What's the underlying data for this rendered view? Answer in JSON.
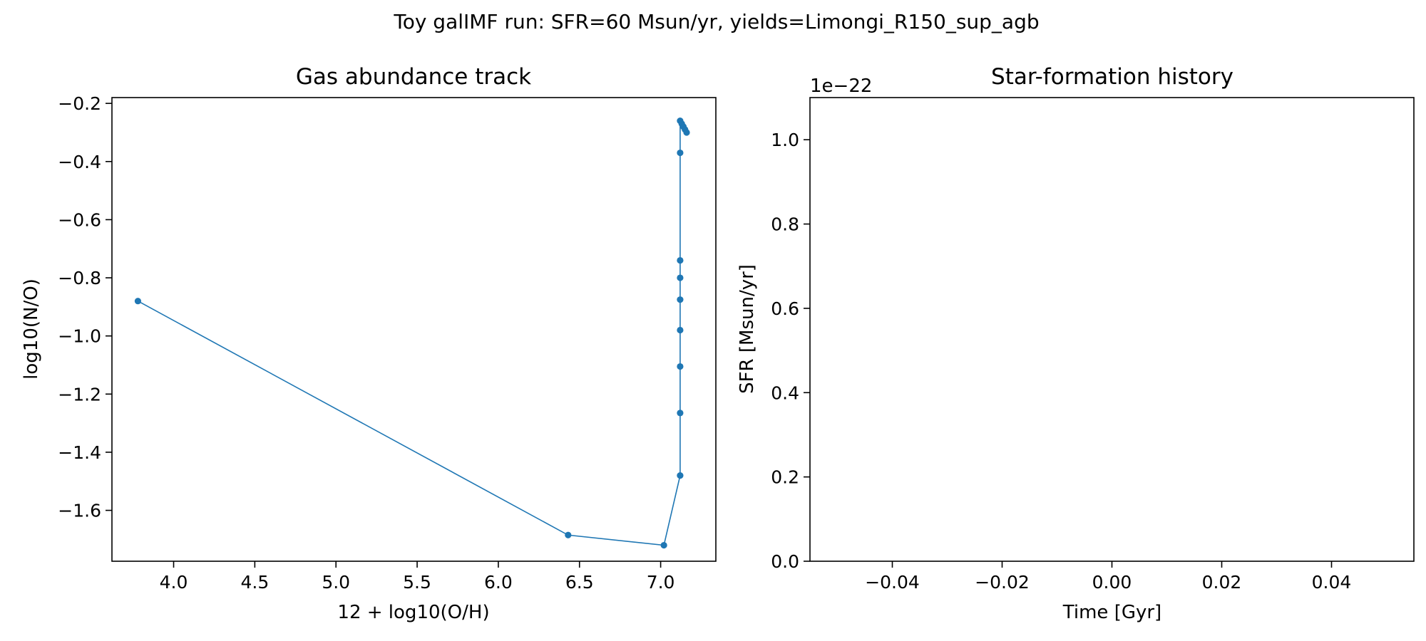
{
  "figure": {
    "suptitle": "Toy galIMF run: SFR=60 Msun/yr, yields=Limongi_R150_sup_agb"
  },
  "chart_data": [
    {
      "type": "line",
      "title": "Gas abundance track",
      "xlabel": "12 + log10(O/H)",
      "ylabel": "log10(N/O)",
      "xlim": [
        3.62,
        7.34
      ],
      "ylim": [
        -1.775,
        -0.18
      ],
      "xticks": [
        4.0,
        4.5,
        5.0,
        5.5,
        6.0,
        6.5,
        7.0
      ],
      "xtick_labels": [
        "4.0",
        "4.5",
        "5.0",
        "5.5",
        "6.0",
        "6.5",
        "7.0"
      ],
      "yticks": [
        -0.2,
        -0.4,
        -0.6,
        -0.8,
        -1.0,
        -1.2,
        -1.4,
        -1.6
      ],
      "ytick_labels": [
        "−0.2",
        "−0.4",
        "−0.6",
        "−0.8",
        "−1.0",
        "−1.2",
        "−1.4",
        "−1.6"
      ],
      "grid": false,
      "color": "#1f77b4",
      "marker": "dot",
      "series": [
        {
          "x": [
            3.78,
            6.43,
            7.02,
            7.12,
            7.12,
            7.12,
            7.12,
            7.12,
            7.12,
            7.12,
            7.12,
            7.12,
            7.13,
            7.14,
            7.15,
            7.16
          ],
          "y": [
            -0.88,
            -1.685,
            -1.72,
            -1.48,
            -1.265,
            -1.105,
            -0.98,
            -0.875,
            -0.8,
            -0.74,
            -0.37,
            -0.26,
            -0.27,
            -0.28,
            -0.29,
            -0.3
          ]
        }
      ]
    },
    {
      "type": "line",
      "title": "Star-formation history",
      "xlabel": "Time [Gyr]",
      "ylabel": "SFR [Msun/yr]",
      "xlim": [
        -0.055,
        0.055
      ],
      "ylim": [
        0,
        1.1
      ],
      "xticks": [
        -0.04,
        -0.02,
        0.0,
        0.02,
        0.04
      ],
      "xtick_labels": [
        "−0.04",
        "−0.02",
        "0.00",
        "0.02",
        "0.04"
      ],
      "yticks": [
        0.0,
        0.2,
        0.4,
        0.6,
        0.8,
        1.0
      ],
      "ytick_labels": [
        "0.0",
        "0.2",
        "0.4",
        "0.6",
        "0.8",
        "1.0"
      ],
      "y_offset_label": "1e−22",
      "grid": false,
      "series": []
    }
  ]
}
